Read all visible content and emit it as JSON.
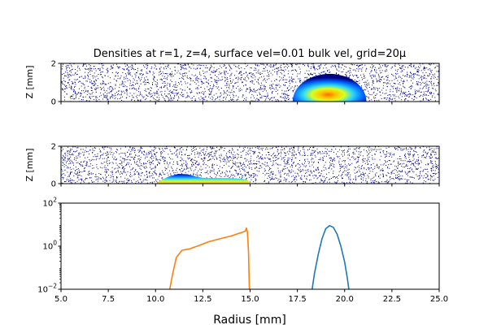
{
  "chart_data": [
    {
      "type": "heatmap",
      "panel": "top",
      "title": "Densities at r=1, z=4, surface vel=0.01 bulk vel, grid=20μ",
      "ylabel": "Z [mm]",
      "xlim": [
        5,
        25
      ],
      "ylim": [
        0,
        2
      ],
      "yticks": [
        "0",
        "2"
      ],
      "colormap": "jet",
      "blob": {
        "center_x": 19.2,
        "half_width": 1.95,
        "height": 1.45,
        "peak": 1.0
      }
    },
    {
      "type": "heatmap",
      "panel": "middle",
      "ylabel": "Z [mm]",
      "xlim": [
        5,
        25
      ],
      "ylim": [
        0,
        2
      ],
      "yticks": [
        "0",
        "2"
      ],
      "colormap": "jet",
      "profile": [
        [
          10.0,
          0.0
        ],
        [
          10.3,
          0.18
        ],
        [
          10.7,
          0.38
        ],
        [
          11.2,
          0.52
        ],
        [
          11.7,
          0.5
        ],
        [
          12.2,
          0.36
        ],
        [
          12.6,
          0.3
        ],
        [
          13.2,
          0.3
        ],
        [
          13.8,
          0.29
        ],
        [
          14.4,
          0.27
        ],
        [
          14.85,
          0.22
        ],
        [
          15.0,
          0.0
        ]
      ]
    },
    {
      "type": "line",
      "panel": "bottom",
      "xlabel": "Radius [mm]",
      "xlim": [
        5,
        25
      ],
      "ylim": [
        0.01,
        100
      ],
      "yscale": "log",
      "xticks": [
        "5.0",
        "7.5",
        "10.0",
        "12.5",
        "15.0",
        "17.5",
        "20.0",
        "22.5",
        "25.0"
      ],
      "xtick_values": [
        5,
        7.5,
        10,
        12.5,
        15,
        17.5,
        20,
        22.5,
        25
      ],
      "ytick_values": [
        0.01,
        1,
        100
      ],
      "series": [
        {
          "color": "#1f77b4",
          "points": [
            [
              18.28,
              0.01
            ],
            [
              18.4,
              0.05
            ],
            [
              18.6,
              0.4
            ],
            [
              18.8,
              2.2
            ],
            [
              19.0,
              6.5
            ],
            [
              19.2,
              9.0
            ],
            [
              19.4,
              7.5
            ],
            [
              19.6,
              3.6
            ],
            [
              19.8,
              1.0
            ],
            [
              20.0,
              0.18
            ],
            [
              20.15,
              0.03
            ],
            [
              20.22,
              0.01
            ]
          ]
        },
        {
          "color": "#ff7f0e",
          "points": [
            [
              10.75,
              0.01
            ],
            [
              10.9,
              0.05
            ],
            [
              11.1,
              0.3
            ],
            [
              11.4,
              0.65
            ],
            [
              11.8,
              0.75
            ],
            [
              12.2,
              1.0
            ],
            [
              12.8,
              1.6
            ],
            [
              13.4,
              2.2
            ],
            [
              14.0,
              3.0
            ],
            [
              14.5,
              4.2
            ],
            [
              14.75,
              5.0
            ],
            [
              14.8,
              7.0
            ],
            [
              14.86,
              4.5
            ],
            [
              14.92,
              0.5
            ],
            [
              14.96,
              0.01
            ]
          ]
        }
      ]
    }
  ]
}
